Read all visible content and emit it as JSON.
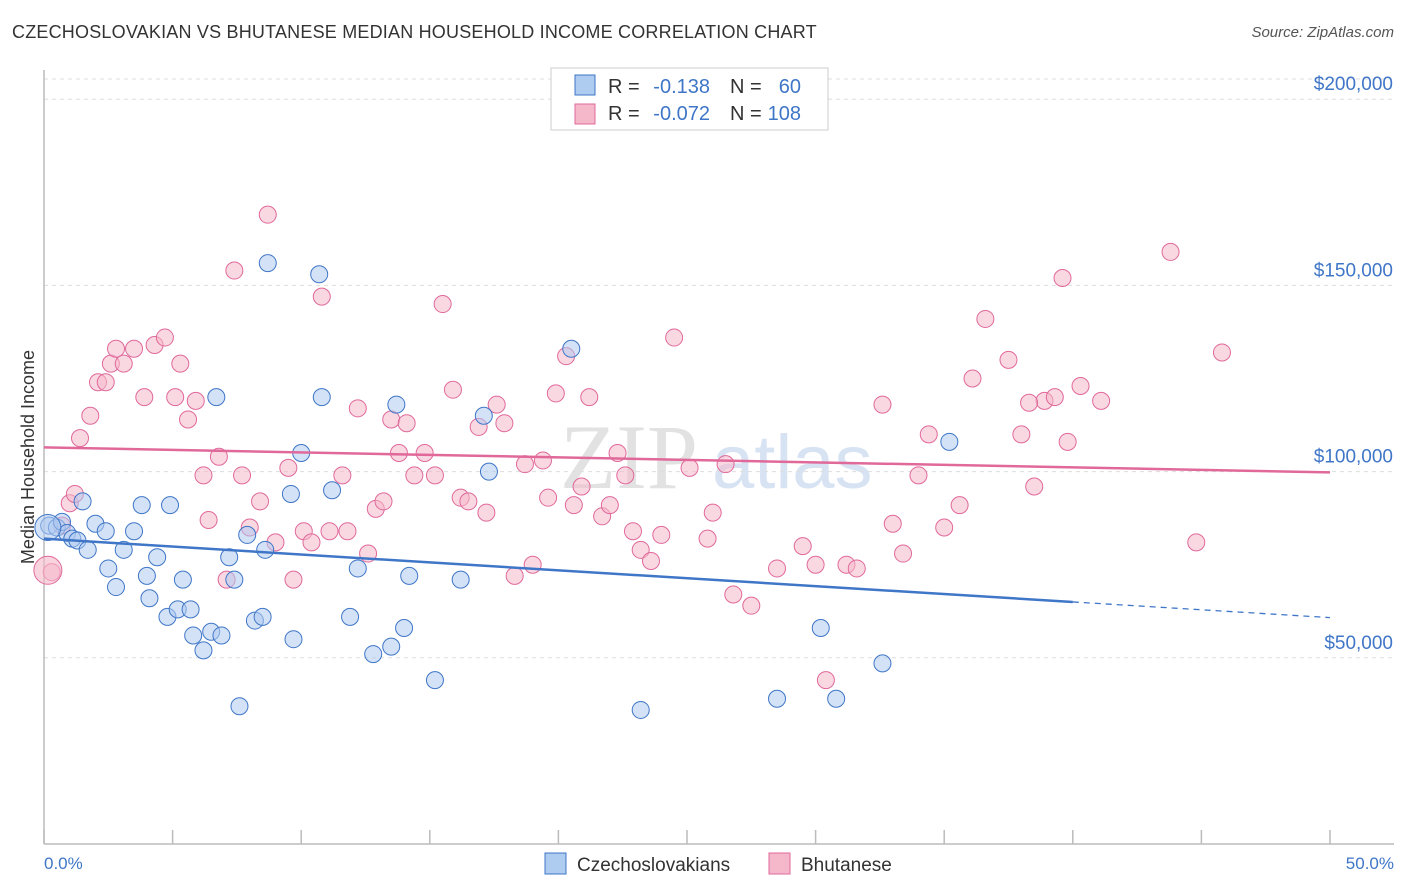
{
  "title": "CZECHOSLOVAKIAN VS BHUTANESE MEDIAN HOUSEHOLD INCOME CORRELATION CHART",
  "source": "Source: ZipAtlas.com",
  "colors": {
    "blue": "#3f76c7",
    "blue_fill": "#aecbf0",
    "pink": "#e0699a",
    "pink_fill": "#f5b8ca",
    "grid": "#dddddd"
  },
  "watermark": {
    "zip": "ZIP",
    "atlas": "atlas"
  },
  "legend": {
    "rows": [
      {
        "r_label": "R =",
        "r_value": "-0.138",
        "n_label": "N =",
        "n_value": "60"
      },
      {
        "r_label": "R =",
        "r_value": "-0.072",
        "n_label": "N =",
        "n_value": "108"
      }
    ]
  },
  "bottom_legend": [
    "Czechoslovakians",
    "Bhutanese"
  ],
  "chart_data": {
    "type": "scatter",
    "title": "CZECHOSLOVAKIAN VS BHUTANESE MEDIAN HOUSEHOLD INCOME CORRELATION CHART",
    "xlabel": "",
    "ylabel": "Median Household Income",
    "xlim": [
      0,
      50
    ],
    "ylim": [
      0,
      210000
    ],
    "x_tick_labels": [
      "0.0%",
      "50.0%"
    ],
    "y_ticks": [
      50000,
      100000,
      150000,
      200000
    ],
    "y_tick_labels": [
      "$50,000",
      "$100,000",
      "$150,000",
      "$200,000"
    ],
    "series": [
      {
        "name": "Czechoslovakians",
        "color": "#3f76c7",
        "r": -0.138,
        "n": 60,
        "trend": {
          "x0": 0,
          "y0": 82000,
          "x1": 40,
          "y1": 65000,
          "dash_to_x": 50,
          "dash_to_y": 60800
        },
        "points": [
          [
            0.2,
            85500
          ],
          [
            0.5,
            85000
          ],
          [
            0.7,
            86500
          ],
          [
            0.9,
            83500
          ],
          [
            1.1,
            82000
          ],
          [
            1.3,
            81500
          ],
          [
            1.5,
            92000
          ],
          [
            1.7,
            79000
          ],
          [
            2.0,
            86000
          ],
          [
            2.4,
            84000
          ],
          [
            2.5,
            74000
          ],
          [
            2.8,
            69000
          ],
          [
            3.1,
            79000
          ],
          [
            3.5,
            84000
          ],
          [
            3.8,
            91000
          ],
          [
            4.0,
            72000
          ],
          [
            4.1,
            66000
          ],
          [
            4.4,
            77000
          ],
          [
            4.8,
            61000
          ],
          [
            4.9,
            91000
          ],
          [
            5.2,
            63000
          ],
          [
            5.4,
            71000
          ],
          [
            5.7,
            63000
          ],
          [
            5.8,
            56000
          ],
          [
            6.2,
            52000
          ],
          [
            6.5,
            57000
          ],
          [
            6.7,
            120000
          ],
          [
            6.9,
            56000
          ],
          [
            7.2,
            77000
          ],
          [
            7.4,
            71000
          ],
          [
            7.6,
            37000
          ],
          [
            7.9,
            83000
          ],
          [
            8.2,
            60000
          ],
          [
            8.5,
            61000
          ],
          [
            8.6,
            79000
          ],
          [
            8.7,
            156000
          ],
          [
            9.6,
            94000
          ],
          [
            9.7,
            55000
          ],
          [
            10.0,
            105000
          ],
          [
            10.7,
            153000
          ],
          [
            10.8,
            120000
          ],
          [
            11.2,
            95000
          ],
          [
            11.9,
            61000
          ],
          [
            12.2,
            74000
          ],
          [
            12.8,
            51000
          ],
          [
            13.5,
            53000
          ],
          [
            13.7,
            118000
          ],
          [
            14.0,
            58000
          ],
          [
            14.2,
            72000
          ],
          [
            15.2,
            44000
          ],
          [
            16.2,
            71000
          ],
          [
            17.1,
            115000
          ],
          [
            17.3,
            100000
          ],
          [
            20.5,
            133000
          ],
          [
            23.2,
            36000
          ],
          [
            28.5,
            39000
          ],
          [
            30.2,
            58000
          ],
          [
            30.8,
            39000
          ],
          [
            32.6,
            48500
          ],
          [
            35.2,
            108000
          ]
        ]
      },
      {
        "name": "Bhutanese",
        "color": "#e0699a",
        "r": -0.072,
        "n": 108,
        "trend": {
          "x0": 0,
          "y0": 106500,
          "x1": 50,
          "y1": 99800
        },
        "points": [
          [
            0.3,
            73000
          ],
          [
            0.7,
            85500
          ],
          [
            1.0,
            91500
          ],
          [
            1.2,
            94000
          ],
          [
            1.4,
            109000
          ],
          [
            1.8,
            115000
          ],
          [
            2.1,
            124000
          ],
          [
            2.4,
            124000
          ],
          [
            2.6,
            129000
          ],
          [
            2.8,
            133000
          ],
          [
            3.1,
            129000
          ],
          [
            3.5,
            133000
          ],
          [
            3.9,
            120000
          ],
          [
            4.3,
            134000
          ],
          [
            4.7,
            136000
          ],
          [
            5.1,
            120000
          ],
          [
            5.3,
            129000
          ],
          [
            5.6,
            114000
          ],
          [
            5.9,
            119000
          ],
          [
            6.2,
            99000
          ],
          [
            6.4,
            87000
          ],
          [
            6.8,
            104000
          ],
          [
            7.1,
            71000
          ],
          [
            7.4,
            154000
          ],
          [
            7.7,
            99000
          ],
          [
            8.0,
            85000
          ],
          [
            8.4,
            92000
          ],
          [
            8.7,
            169000
          ],
          [
            9.0,
            81000
          ],
          [
            9.5,
            101000
          ],
          [
            9.7,
            71000
          ],
          [
            10.1,
            84000
          ],
          [
            10.4,
            81000
          ],
          [
            10.8,
            147000
          ],
          [
            11.1,
            84000
          ],
          [
            11.6,
            99000
          ],
          [
            11.8,
            84000
          ],
          [
            12.2,
            117000
          ],
          [
            12.6,
            78000
          ],
          [
            12.9,
            90000
          ],
          [
            13.2,
            92000
          ],
          [
            13.5,
            114000
          ],
          [
            13.8,
            105000
          ],
          [
            14.1,
            113000
          ],
          [
            14.4,
            99000
          ],
          [
            14.8,
            105000
          ],
          [
            15.2,
            99000
          ],
          [
            15.5,
            145000
          ],
          [
            15.9,
            122000
          ],
          [
            16.2,
            93000
          ],
          [
            16.5,
            92000
          ],
          [
            16.9,
            112000
          ],
          [
            17.2,
            89000
          ],
          [
            17.6,
            118000
          ],
          [
            17.9,
            113000
          ],
          [
            18.3,
            72000
          ],
          [
            18.7,
            102000
          ],
          [
            19.0,
            75000
          ],
          [
            19.4,
            103000
          ],
          [
            19.6,
            93000
          ],
          [
            19.9,
            121000
          ],
          [
            20.3,
            131000
          ],
          [
            20.6,
            91000
          ],
          [
            20.9,
            96000
          ],
          [
            21.2,
            120000
          ],
          [
            21.7,
            88000
          ],
          [
            22.0,
            91000
          ],
          [
            22.3,
            105000
          ],
          [
            22.6,
            99000
          ],
          [
            22.9,
            84000
          ],
          [
            23.2,
            79000
          ],
          [
            23.6,
            76000
          ],
          [
            24.0,
            83000
          ],
          [
            24.5,
            136000
          ],
          [
            25.1,
            101000
          ],
          [
            25.8,
            82000
          ],
          [
            26.0,
            89000
          ],
          [
            26.5,
            102000
          ],
          [
            26.8,
            67000
          ],
          [
            27.5,
            64000
          ],
          [
            28.5,
            74000
          ],
          [
            29.5,
            80000
          ],
          [
            30.0,
            75000
          ],
          [
            30.4,
            44000
          ],
          [
            31.2,
            75000
          ],
          [
            31.6,
            74000
          ],
          [
            32.6,
            118000
          ],
          [
            33.0,
            86000
          ],
          [
            33.4,
            78000
          ],
          [
            34.0,
            99000
          ],
          [
            34.4,
            110000
          ],
          [
            35.0,
            85000
          ],
          [
            35.6,
            91000
          ],
          [
            36.1,
            125000
          ],
          [
            36.6,
            141000
          ],
          [
            37.5,
            130000
          ],
          [
            38.0,
            110000
          ],
          [
            38.5,
            96000
          ],
          [
            38.9,
            119000
          ],
          [
            39.3,
            120000
          ],
          [
            39.6,
            152000
          ],
          [
            39.8,
            108000
          ],
          [
            40.3,
            123000
          ],
          [
            41.1,
            119000
          ],
          [
            43.8,
            159000
          ],
          [
            44.8,
            81000
          ],
          [
            45.8,
            132000
          ],
          [
            38.3,
            118500
          ]
        ]
      }
    ]
  }
}
